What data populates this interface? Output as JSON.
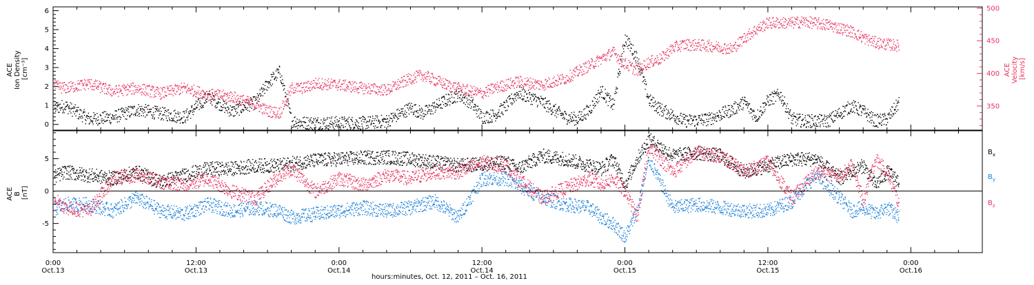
{
  "panels": {
    "top": {
      "left_axis_label_lines": [
        "ACE",
        "Ion Density",
        "[cm⁻³]"
      ],
      "right_axis_label_lines": [
        "ACE",
        "Velocity",
        "[km/s]"
      ]
    },
    "bottom": {
      "left_axis_label_lines": [
        "ACE",
        "B",
        "[nT]"
      ]
    }
  },
  "x_axis": {
    "label": "hours:minutes, Oct. 12, 2011 – Oct. 16, 2011",
    "ticks": [
      {
        "t": 24,
        "time": "0:00",
        "date": "Oct.13"
      },
      {
        "t": 36,
        "time": "12:00",
        "date": "Oct.13"
      },
      {
        "t": 48,
        "time": "0:00",
        "date": "Oct.14"
      },
      {
        "t": 60,
        "time": "12:00",
        "date": "Oct.14"
      },
      {
        "t": 72,
        "time": "0:00",
        "date": "Oct.15"
      },
      {
        "t": 84,
        "time": "12:00",
        "date": "Oct.15"
      },
      {
        "t": 96,
        "time": "0:00",
        "date": "Oct.16"
      }
    ]
  },
  "colors": {
    "density": "#000000",
    "velocity": "#e8305c",
    "bx": "#000000",
    "by": "#1a7fd8",
    "bz": "#e8305c"
  },
  "chart_data": [
    {
      "type": "scatter",
      "title": "",
      "x_unit": "hours since Oct. 12, 2011 00:00",
      "xlim": [
        24,
        102
      ],
      "ylim": [
        -0.3,
        6.2
      ],
      "y2lim": [
        313,
        502
      ],
      "left_ticks": [
        0,
        1,
        2,
        3,
        4,
        5,
        6
      ],
      "right_ticks": [
        350,
        400,
        450,
        500
      ],
      "grid": false,
      "series": [
        {
          "key": "density",
          "axis": "left",
          "x": [
            23,
            25,
            27,
            29,
            31,
            33,
            35,
            37,
            39,
            41,
            42,
            43,
            44,
            45,
            46,
            48,
            50,
            52,
            54,
            55,
            57,
            58,
            59,
            60,
            61,
            62,
            63,
            65,
            67,
            68,
            69,
            70,
            71,
            72,
            73,
            74,
            75,
            76,
            77,
            79,
            81,
            82,
            83,
            84,
            85,
            86,
            87,
            89,
            91,
            92,
            93,
            94,
            95
          ],
          "values": [
            0.8,
            1.0,
            0.3,
            0.4,
            0.8,
            0.6,
            0.4,
            1.5,
            0.7,
            1.2,
            2.2,
            2.8,
            0.2,
            0.1,
            0.1,
            0.1,
            0.1,
            0.2,
            0.9,
            0.6,
            1.3,
            1.6,
            1.2,
            0.4,
            0.5,
            1.0,
            1.7,
            1.2,
            0.4,
            0.3,
            0.8,
            1.8,
            1.0,
            4.6,
            3.5,
            1.3,
            0.8,
            0.5,
            0.2,
            0.3,
            0.8,
            1.2,
            0.4,
            1.3,
            1.6,
            0.3,
            0.2,
            0.2,
            1.0,
            0.7,
            0.2,
            0.3,
            1.2
          ]
        },
        {
          "key": "velocity",
          "axis": "right",
          "x": [
            23,
            25,
            27,
            29,
            31,
            33,
            35,
            37,
            39,
            41,
            42,
            43,
            44,
            45,
            46,
            48,
            50,
            52,
            54,
            55,
            57,
            58,
            59,
            60,
            61,
            62,
            63,
            65,
            67,
            68,
            69,
            70,
            71,
            72,
            73,
            74,
            75,
            76,
            77,
            79,
            81,
            82,
            83,
            84,
            85,
            86,
            87,
            89,
            91,
            92,
            93,
            94,
            95
          ],
          "values": [
            385,
            378,
            385,
            373,
            378,
            370,
            378,
            368,
            365,
            352,
            343,
            340,
            378,
            378,
            385,
            383,
            378,
            375,
            393,
            398,
            383,
            378,
            373,
            370,
            378,
            383,
            388,
            383,
            393,
            403,
            413,
            423,
            433,
            415,
            405,
            418,
            423,
            440,
            445,
            443,
            438,
            455,
            468,
            478,
            478,
            478,
            480,
            475,
            465,
            455,
            448,
            445,
            443
          ]
        }
      ]
    },
    {
      "type": "scatter",
      "title": "",
      "x_unit": "hours since Oct. 12, 2011 00:00",
      "xlim": [
        24,
        102
      ],
      "ylim": [
        -9.5,
        9.3
      ],
      "left_ticks": [
        -5,
        0,
        5
      ],
      "zero_line": true,
      "grid": false,
      "legend": "right",
      "series": [
        {
          "key": "bx",
          "name": "Bx",
          "x": [
            23,
            25,
            27,
            29,
            31,
            33,
            35,
            37,
            39,
            41,
            43,
            44,
            46,
            48,
            50,
            52,
            54,
            56,
            58,
            60,
            62,
            63,
            65,
            67,
            69,
            70,
            71,
            72,
            73,
            74,
            76,
            78,
            80,
            82,
            84,
            86,
            88,
            90,
            91,
            92,
            93,
            94,
            95
          ],
          "values": [
            1.5,
            3.0,
            2.5,
            2.0,
            3.0,
            1.5,
            2.5,
            3.5,
            3.5,
            4.0,
            4.0,
            4.3,
            4.8,
            5.0,
            5.2,
            5.3,
            5.0,
            4.5,
            4.0,
            4.2,
            4.5,
            3.5,
            5.5,
            5.0,
            4.0,
            3.5,
            5.0,
            1.0,
            5.0,
            8.0,
            5.5,
            6.0,
            5.5,
            3.0,
            4.0,
            5.0,
            5.0,
            2.0,
            3.0,
            4.0,
            1.0,
            3.0,
            1.5
          ]
        },
        {
          "key": "by",
          "name": "By",
          "x": [
            23,
            25,
            27,
            29,
            31,
            33,
            35,
            37,
            39,
            41,
            43,
            44,
            46,
            48,
            50,
            52,
            54,
            56,
            58,
            60,
            62,
            63,
            65,
            67,
            69,
            70,
            71,
            72,
            73,
            74,
            76,
            78,
            80,
            82,
            84,
            86,
            88,
            90,
            91,
            92,
            93,
            94,
            95
          ],
          "values": [
            -3.5,
            -2.0,
            -2.0,
            -3.0,
            -1.0,
            -3.0,
            -3.5,
            -2.0,
            -3.0,
            -2.5,
            -3.0,
            -4.0,
            -3.5,
            -3.0,
            -2.5,
            -3.0,
            -2.5,
            -1.5,
            -4.0,
            2.0,
            2.0,
            1.0,
            -1.0,
            -2.0,
            -2.5,
            -4.0,
            -5.0,
            -7.0,
            -3.0,
            5.0,
            -2.5,
            -2.0,
            -2.5,
            -3.0,
            -3.0,
            -1.5,
            2.5,
            -1.0,
            -3.0,
            -2.5,
            -3.5,
            -2.5,
            -4.0
          ]
        },
        {
          "key": "bz",
          "name": "Bz",
          "x": [
            23,
            25,
            27,
            29,
            31,
            33,
            35,
            37,
            39,
            41,
            43,
            44,
            46,
            48,
            50,
            52,
            54,
            56,
            58,
            60,
            62,
            63,
            65,
            67,
            69,
            70,
            71,
            72,
            73,
            74,
            76,
            78,
            80,
            82,
            84,
            86,
            88,
            90,
            91,
            92,
            93,
            94,
            95
          ],
          "values": [
            1.0,
            -2.5,
            -3.0,
            2.0,
            2.5,
            1.5,
            1.0,
            2.0,
            0.0,
            -1.0,
            2.5,
            3.5,
            0.0,
            2.0,
            1.0,
            2.5,
            2.0,
            3.0,
            3.0,
            4.5,
            4.0,
            2.0,
            -1.0,
            0.5,
            2.0,
            1.0,
            2.0,
            0.0,
            -4.0,
            7.0,
            3.0,
            6.0,
            5.5,
            3.0,
            4.5,
            -1.0,
            3.0,
            2.5,
            4.0,
            -1.5,
            5.0,
            3.0,
            -2.0
          ]
        }
      ]
    }
  ]
}
